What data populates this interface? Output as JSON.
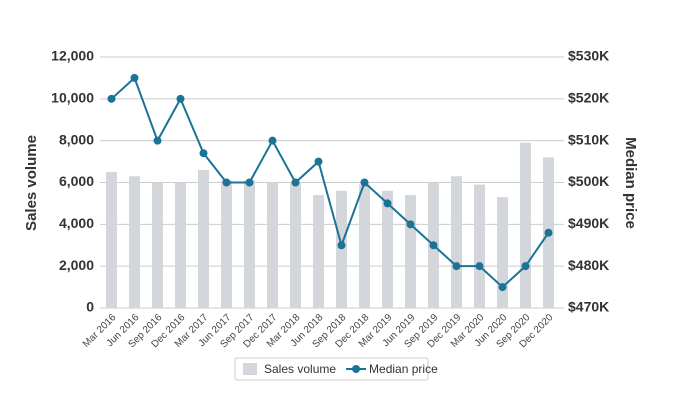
{
  "chart_data": {
    "type": "bar",
    "categories": [
      "Mar 2016",
      "Jun 2016",
      "Sep 2016",
      "Dec 2016",
      "Mar 2017",
      "Jun 2017",
      "Sep 2017",
      "Dec 2017",
      "Mar 2018",
      "Jun 2018",
      "Sep 2018",
      "Dec 2018",
      "Mar 2019",
      "Jun 2019",
      "Sep 2019",
      "Dec 2019",
      "Mar 2020",
      "Jun 2020",
      "Sep 2020",
      "Dec 2020"
    ],
    "series": [
      {
        "name": "Sales volume",
        "type": "bar",
        "color": "#d3d6db",
        "values": [
          6500,
          6300,
          6000,
          6000,
          6600,
          6100,
          6100,
          6000,
          6000,
          5400,
          5600,
          5900,
          5600,
          5400,
          6000,
          6300,
          5900,
          5300,
          7900,
          7200
        ]
      },
      {
        "name": "Median price",
        "type": "line",
        "axis": "y2",
        "color": "#1b7396",
        "values": [
          520000,
          525000,
          510000,
          520000,
          507000,
          500000,
          500000,
          510000,
          500000,
          505000,
          485000,
          500000,
          495000,
          490000,
          485000,
          480000,
          480000,
          475000,
          480000,
          488000
        ]
      }
    ],
    "y_label": "Sales volume",
    "y2_label": "Median price",
    "ylim": [
      0,
      12000
    ],
    "yticks": [
      0,
      {
        "value": 2000,
        "label": "2,000"
      },
      {
        "value": 4000,
        "label": "4,000"
      },
      {
        "value": 6000,
        "label": "6,000"
      },
      {
        "value": 8000,
        "label": "8,000"
      },
      {
        "value": 10000,
        "label": "10,000"
      },
      {
        "value": 12000,
        "label": "12,000"
      }
    ],
    "y2lim": [
      470000,
      530000
    ],
    "y2ticks": [
      {
        "value": 470000,
        "label": "$470K"
      },
      {
        "value": 480000,
        "label": "$480K"
      },
      {
        "value": 490000,
        "label": "$490K"
      },
      {
        "value": 500000,
        "label": "$500K"
      },
      {
        "value": 510000,
        "label": "$510K"
      },
      {
        "value": 520000,
        "label": "$520K"
      },
      {
        "value": 530000,
        "label": "$530K"
      }
    ],
    "grid": true,
    "legend": "bottom"
  }
}
